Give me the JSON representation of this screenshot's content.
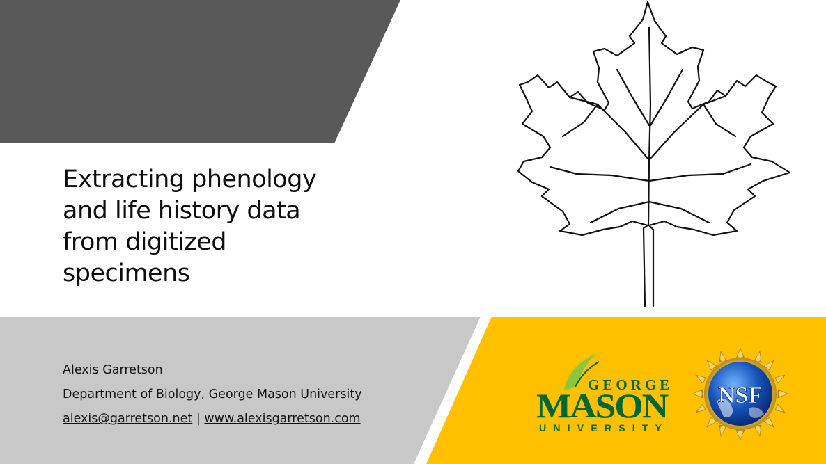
{
  "slide": {
    "title_lines": [
      "Extracting phenology",
      "and life history data",
      "from digitized",
      "specimens"
    ],
    "author_name": "Alexis Garretson",
    "affiliation": "Department of Biology, George Mason University",
    "email": "alexis@garretson.net",
    "separator": "|",
    "website": "www.alexisgarretson.com"
  },
  "logos": {
    "gmu": {
      "line1": "GEORGE",
      "line2": "MASON",
      "line3": "UNIVERSITY",
      "color": "#006633"
    },
    "nsf": {
      "text": "NSF"
    }
  },
  "colors": {
    "top_band": "#595959",
    "bottom_band": "#c8c8c8",
    "gold": "#ffc000",
    "title_text": "#0d0d0d"
  },
  "images": {
    "leaf": "maple-leaf-illustration"
  }
}
